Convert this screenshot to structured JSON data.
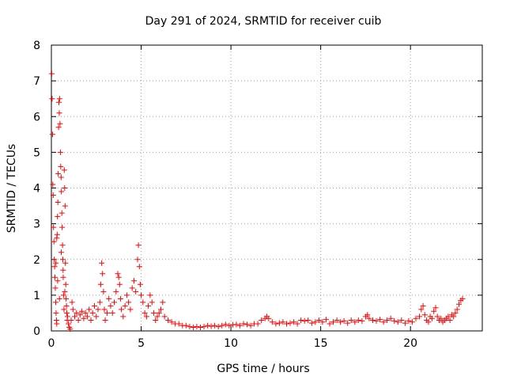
{
  "chart_data": {
    "type": "scatter",
    "title": "Day 291 of 2024, SRMTID for receiver cuib",
    "xlabel": "GPS time / hours",
    "ylabel": "SRMTID / TECUs",
    "xlim": [
      0,
      24
    ],
    "ylim": [
      0,
      8
    ],
    "xticks": [
      0,
      5,
      10,
      15,
      20
    ],
    "yticks": [
      0,
      1,
      2,
      3,
      4,
      5,
      6,
      7,
      8
    ],
    "xtick_labels": [
      "0",
      "5",
      "10",
      "15",
      "20"
    ],
    "ytick_labels": [
      "0",
      "1",
      "2",
      "3",
      "4",
      "5",
      "6",
      "7",
      "8"
    ],
    "grid": true,
    "marker": "plus",
    "color": "#ff0000",
    "series": [
      {
        "name": "SRMTID",
        "points": [
          [
            0.02,
            7.2
          ],
          [
            0.04,
            6.5
          ],
          [
            0.06,
            5.5
          ],
          [
            0.08,
            4.1
          ],
          [
            0.1,
            3.8
          ],
          [
            0.12,
            2.9
          ],
          [
            0.14,
            2.5
          ],
          [
            0.16,
            2.0
          ],
          [
            0.18,
            1.8
          ],
          [
            0.2,
            1.5
          ],
          [
            0.22,
            1.2
          ],
          [
            0.24,
            0.8
          ],
          [
            0.26,
            0.5
          ],
          [
            0.28,
            0.3
          ],
          [
            0.3,
            0.2
          ],
          [
            0.32,
            2.7
          ],
          [
            0.34,
            3.2
          ],
          [
            0.36,
            3.6
          ],
          [
            0.38,
            4.4
          ],
          [
            0.4,
            5.7
          ],
          [
            0.42,
            6.4
          ],
          [
            0.44,
            6.1
          ],
          [
            0.46,
            6.5
          ],
          [
            0.48,
            5.8
          ],
          [
            0.5,
            5.0
          ],
          [
            0.52,
            4.6
          ],
          [
            0.54,
            4.3
          ],
          [
            0.56,
            3.9
          ],
          [
            0.58,
            3.3
          ],
          [
            0.6,
            2.9
          ],
          [
            0.62,
            2.4
          ],
          [
            0.64,
            2.0
          ],
          [
            0.66,
            1.5
          ],
          [
            0.68,
            1.0
          ],
          [
            0.7,
            0.6
          ],
          [
            0.72,
            4.5
          ],
          [
            0.74,
            4.0
          ],
          [
            0.76,
            3.5
          ],
          [
            0.78,
            1.9
          ],
          [
            0.8,
            1.3
          ],
          [
            0.82,
            0.9
          ],
          [
            0.84,
            0.7
          ],
          [
            0.86,
            0.5
          ],
          [
            0.88,
            0.3
          ],
          [
            0.3,
            2.6
          ],
          [
            0.25,
            1.9
          ],
          [
            0.35,
            1.4
          ],
          [
            0.45,
            0.9
          ],
          [
            0.55,
            2.2
          ],
          [
            0.65,
            1.7
          ],
          [
            0.75,
            1.1
          ],
          [
            0.9,
            0.4
          ],
          [
            0.95,
            0.2
          ],
          [
            1.0,
            0.1
          ],
          [
            1.05,
            0.05
          ],
          [
            1.1,
            0.3
          ],
          [
            1.15,
            0.8
          ],
          [
            1.2,
            0.6
          ],
          [
            1.3,
            0.4
          ],
          [
            1.4,
            0.5
          ],
          [
            1.5,
            0.3
          ],
          [
            1.6,
            0.45
          ],
          [
            1.7,
            0.55
          ],
          [
            1.8,
            0.35
          ],
          [
            1.9,
            0.5
          ],
          [
            2.0,
            0.4
          ],
          [
            2.1,
            0.6
          ],
          [
            2.2,
            0.3
          ],
          [
            2.3,
            0.5
          ],
          [
            2.4,
            0.7
          ],
          [
            2.5,
            0.4
          ],
          [
            2.6,
            0.6
          ],
          [
            2.7,
            0.8
          ],
          [
            2.75,
            1.3
          ],
          [
            2.8,
            1.9
          ],
          [
            2.85,
            1.6
          ],
          [
            2.9,
            1.1
          ],
          [
            2.95,
            0.6
          ],
          [
            3.0,
            0.3
          ],
          [
            3.1,
            0.5
          ],
          [
            3.2,
            0.9
          ],
          [
            3.3,
            0.7
          ],
          [
            3.4,
            0.5
          ],
          [
            3.5,
            0.8
          ],
          [
            3.6,
            1.1
          ],
          [
            3.7,
            1.6
          ],
          [
            3.75,
            1.5
          ],
          [
            3.8,
            1.3
          ],
          [
            3.85,
            0.9
          ],
          [
            3.9,
            0.6
          ],
          [
            4.0,
            0.4
          ],
          [
            4.1,
            0.7
          ],
          [
            4.2,
            1.0
          ],
          [
            4.3,
            0.8
          ],
          [
            4.4,
            0.6
          ],
          [
            4.5,
            1.2
          ],
          [
            4.6,
            1.4
          ],
          [
            4.7,
            1.1
          ],
          [
            4.8,
            2.0
          ],
          [
            4.85,
            2.4
          ],
          [
            4.9,
            1.8
          ],
          [
            4.95,
            1.3
          ],
          [
            5.0,
            1.0
          ],
          [
            5.1,
            0.8
          ],
          [
            5.2,
            0.5
          ],
          [
            5.3,
            0.4
          ],
          [
            5.4,
            0.7
          ],
          [
            5.5,
            1.0
          ],
          [
            5.6,
            0.8
          ],
          [
            5.7,
            0.5
          ],
          [
            5.8,
            0.3
          ],
          [
            5.9,
            0.4
          ],
          [
            6.0,
            0.5
          ],
          [
            6.1,
            0.6
          ],
          [
            6.2,
            0.8
          ],
          [
            6.3,
            0.4
          ],
          [
            6.5,
            0.3
          ],
          [
            6.7,
            0.25
          ],
          [
            6.9,
            0.2
          ],
          [
            7.1,
            0.2
          ],
          [
            7.3,
            0.15
          ],
          [
            7.5,
            0.15
          ],
          [
            7.7,
            0.12
          ],
          [
            7.9,
            0.1
          ],
          [
            8.1,
            0.12
          ],
          [
            8.3,
            0.1
          ],
          [
            8.5,
            0.12
          ],
          [
            8.7,
            0.15
          ],
          [
            8.9,
            0.13
          ],
          [
            9.1,
            0.15
          ],
          [
            9.3,
            0.12
          ],
          [
            9.5,
            0.15
          ],
          [
            9.7,
            0.18
          ],
          [
            9.9,
            0.15
          ],
          [
            10.1,
            0.17
          ],
          [
            10.3,
            0.18
          ],
          [
            10.5,
            0.15
          ],
          [
            10.7,
            0.2
          ],
          [
            10.9,
            0.18
          ],
          [
            11.1,
            0.15
          ],
          [
            11.3,
            0.2
          ],
          [
            11.5,
            0.2
          ],
          [
            11.7,
            0.3
          ],
          [
            11.9,
            0.35
          ],
          [
            12.0,
            0.4
          ],
          [
            12.1,
            0.35
          ],
          [
            12.3,
            0.25
          ],
          [
            12.5,
            0.2
          ],
          [
            12.7,
            0.22
          ],
          [
            12.9,
            0.25
          ],
          [
            13.1,
            0.2
          ],
          [
            13.3,
            0.22
          ],
          [
            13.5,
            0.25
          ],
          [
            13.7,
            0.2
          ],
          [
            13.9,
            0.3
          ],
          [
            14.1,
            0.28
          ],
          [
            14.3,
            0.3
          ],
          [
            14.5,
            0.22
          ],
          [
            14.7,
            0.25
          ],
          [
            14.9,
            0.3
          ],
          [
            15.1,
            0.25
          ],
          [
            15.3,
            0.32
          ],
          [
            15.5,
            0.2
          ],
          [
            15.7,
            0.25
          ],
          [
            15.9,
            0.3
          ],
          [
            16.1,
            0.25
          ],
          [
            16.3,
            0.28
          ],
          [
            16.5,
            0.22
          ],
          [
            16.7,
            0.3
          ],
          [
            16.9,
            0.25
          ],
          [
            17.1,
            0.3
          ],
          [
            17.3,
            0.28
          ],
          [
            17.5,
            0.4
          ],
          [
            17.6,
            0.45
          ],
          [
            17.7,
            0.35
          ],
          [
            17.9,
            0.3
          ],
          [
            18.1,
            0.28
          ],
          [
            18.3,
            0.32
          ],
          [
            18.5,
            0.25
          ],
          [
            18.7,
            0.3
          ],
          [
            18.9,
            0.35
          ],
          [
            19.1,
            0.28
          ],
          [
            19.3,
            0.25
          ],
          [
            19.5,
            0.3
          ],
          [
            19.7,
            0.22
          ],
          [
            19.9,
            0.28
          ],
          [
            20.1,
            0.25
          ],
          [
            20.3,
            0.35
          ],
          [
            20.5,
            0.4
          ],
          [
            20.6,
            0.6
          ],
          [
            20.7,
            0.7
          ],
          [
            20.8,
            0.45
          ],
          [
            20.9,
            0.3
          ],
          [
            21.0,
            0.25
          ],
          [
            21.1,
            0.4
          ],
          [
            21.2,
            0.35
          ],
          [
            21.3,
            0.55
          ],
          [
            21.4,
            0.65
          ],
          [
            21.5,
            0.4
          ],
          [
            21.6,
            0.3
          ],
          [
            21.7,
            0.35
          ],
          [
            21.8,
            0.25
          ],
          [
            21.9,
            0.3
          ],
          [
            22.0,
            0.35
          ],
          [
            22.1,
            0.4
          ],
          [
            22.2,
            0.3
          ],
          [
            22.3,
            0.45
          ],
          [
            22.4,
            0.4
          ],
          [
            22.5,
            0.5
          ],
          [
            22.6,
            0.6
          ],
          [
            22.7,
            0.75
          ],
          [
            22.8,
            0.85
          ],
          [
            22.9,
            0.9
          ]
        ]
      }
    ]
  }
}
